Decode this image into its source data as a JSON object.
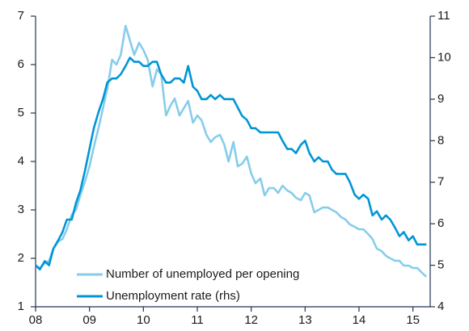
{
  "chart_data": {
    "type": "line",
    "x": [
      2008,
      2008.08,
      2008.17,
      2008.25,
      2008.33,
      2008.42,
      2008.5,
      2008.58,
      2008.67,
      2008.75,
      2008.83,
      2008.92,
      2009,
      2009.08,
      2009.17,
      2009.25,
      2009.33,
      2009.42,
      2009.5,
      2009.58,
      2009.67,
      2009.75,
      2009.83,
      2009.92,
      2010,
      2010.08,
      2010.17,
      2010.25,
      2010.33,
      2010.42,
      2010.5,
      2010.58,
      2010.67,
      2010.75,
      2010.83,
      2010.92,
      2011,
      2011.08,
      2011.17,
      2011.25,
      2011.33,
      2011.42,
      2011.5,
      2011.58,
      2011.67,
      2011.75,
      2011.83,
      2011.92,
      2012,
      2012.08,
      2012.17,
      2012.25,
      2012.33,
      2012.42,
      2012.5,
      2012.58,
      2012.67,
      2012.75,
      2012.83,
      2012.92,
      2013,
      2013.08,
      2013.17,
      2013.25,
      2013.33,
      2013.42,
      2013.5,
      2013.58,
      2013.67,
      2013.75,
      2013.83,
      2013.92,
      2014,
      2014.08,
      2014.17,
      2014.25,
      2014.33,
      2014.42,
      2014.5,
      2014.58,
      2014.67,
      2014.75,
      2014.83,
      2014.92,
      2015,
      2015.08,
      2015.17,
      2015.25
    ],
    "series": [
      {
        "name": "Number of unemployed per opening",
        "color": "#86cdea",
        "axis": "y",
        "values": [
          1.85,
          1.8,
          1.9,
          1.95,
          2.2,
          2.35,
          2.4,
          2.6,
          2.9,
          3.0,
          3.3,
          3.6,
          3.9,
          4.3,
          4.7,
          5.1,
          5.5,
          6.1,
          6.0,
          6.2,
          6.8,
          6.5,
          6.2,
          6.45,
          6.3,
          6.1,
          5.55,
          5.9,
          5.8,
          4.95,
          5.15,
          5.3,
          4.95,
          5.1,
          5.25,
          4.8,
          4.95,
          4.85,
          4.55,
          4.4,
          4.5,
          4.55,
          4.35,
          4.0,
          4.4,
          3.9,
          3.95,
          4.1,
          3.75,
          3.55,
          3.65,
          3.3,
          3.45,
          3.45,
          3.35,
          3.5,
          3.4,
          3.35,
          3.25,
          3.2,
          3.35,
          3.3,
          2.95,
          3.0,
          3.05,
          3.05,
          3.0,
          2.95,
          2.85,
          2.8,
          2.7,
          2.65,
          2.6,
          2.6,
          2.5,
          2.4,
          2.2,
          2.15,
          2.05,
          2.0,
          1.95,
          1.95,
          1.85,
          1.85,
          1.8,
          1.8,
          1.7,
          1.62
        ]
      },
      {
        "name": "Unemployment rate (rhs)",
        "color": "#0096d6",
        "axis": "y2",
        "values": [
          5.0,
          4.9,
          5.1,
          5.0,
          5.4,
          5.6,
          5.8,
          6.1,
          6.1,
          6.5,
          6.8,
          7.3,
          7.8,
          8.3,
          8.7,
          9.0,
          9.4,
          9.5,
          9.5,
          9.6,
          9.8,
          10.0,
          9.9,
          9.9,
          9.8,
          9.8,
          9.9,
          9.9,
          9.6,
          9.4,
          9.4,
          9.5,
          9.5,
          9.4,
          9.8,
          9.3,
          9.2,
          9.0,
          9.0,
          9.1,
          9.0,
          9.1,
          9.0,
          9.0,
          9.0,
          8.8,
          8.6,
          8.5,
          8.3,
          8.3,
          8.2,
          8.2,
          8.2,
          8.2,
          8.2,
          8.0,
          7.8,
          7.8,
          7.7,
          7.9,
          8.0,
          7.7,
          7.5,
          7.6,
          7.5,
          7.5,
          7.3,
          7.2,
          7.2,
          7.2,
          7.0,
          6.7,
          6.6,
          6.7,
          6.6,
          6.2,
          6.3,
          6.1,
          6.2,
          6.1,
          5.9,
          5.7,
          5.8,
          5.6,
          5.7,
          5.5,
          5.5,
          5.5
        ]
      }
    ],
    "xlim": [
      2008,
      2015.32
    ],
    "xticks": [
      {
        "value": 2008,
        "label": "08"
      },
      {
        "value": 2009,
        "label": "09"
      },
      {
        "value": 2010,
        "label": "10"
      },
      {
        "value": 2011,
        "label": "11"
      },
      {
        "value": 2012,
        "label": "12"
      },
      {
        "value": 2013,
        "label": "13"
      },
      {
        "value": 2014,
        "label": "14"
      },
      {
        "value": 2015,
        "label": "15"
      }
    ],
    "ylim": [
      1,
      7
    ],
    "yticks": [
      1,
      2,
      3,
      4,
      5,
      6,
      7
    ],
    "y2lim": [
      4,
      11
    ],
    "y2ticks": [
      4,
      5,
      6,
      7,
      8,
      9,
      10,
      11
    ],
    "grid": false,
    "legend": "lower center"
  }
}
